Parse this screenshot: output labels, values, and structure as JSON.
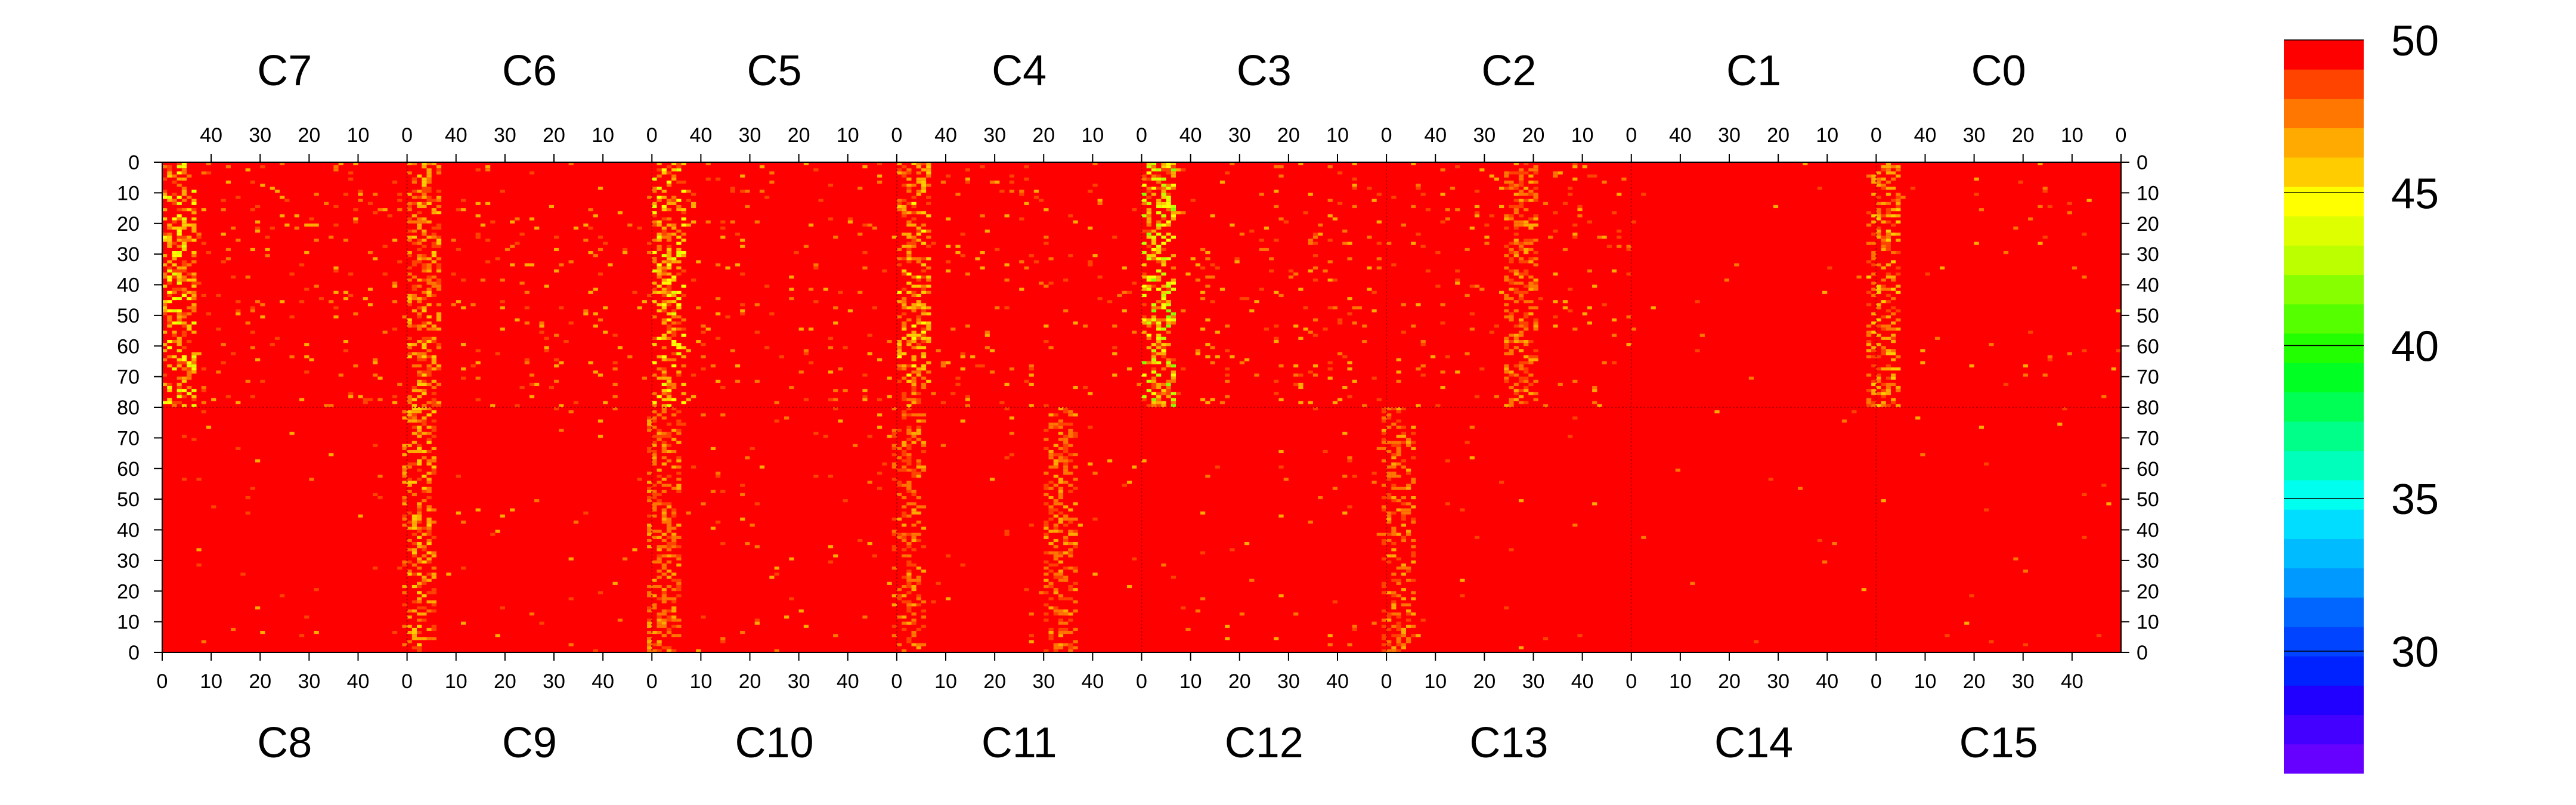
{
  "chart_data": {
    "type": "heatmap",
    "title": "",
    "top_panels": [
      "C7",
      "C6",
      "C5",
      "C4",
      "C3",
      "C2",
      "C1",
      "C0"
    ],
    "bottom_panels": [
      "C8",
      "C9",
      "C10",
      "C11",
      "C12",
      "C13",
      "C14",
      "C15"
    ],
    "top_x_ticks": [
      40,
      30,
      20,
      10,
      0
    ],
    "bottom_x_ticks": [
      0,
      10,
      20,
      30,
      40
    ],
    "top_y_ticks": [
      0,
      10,
      20,
      30,
      40,
      50,
      60,
      70,
      80
    ],
    "bottom_y_ticks": [
      70,
      60,
      50,
      40,
      30,
      20,
      10,
      0
    ],
    "columns_per_panel": 50,
    "rows_per_half": 80,
    "zlim": [
      26,
      50
    ],
    "colorbar_ticks": [
      30,
      35,
      40,
      45,
      50
    ],
    "colorbar_colors": [
      "#6600ff",
      "#4400ff",
      "#2200ff",
      "#0022ff",
      "#0044ff",
      "#0066ff",
      "#0099ff",
      "#00bbff",
      "#00ddff",
      "#00ffee",
      "#00ffbb",
      "#00ff88",
      "#00ff55",
      "#00ff22",
      "#22ff00",
      "#55ff00",
      "#88ff00",
      "#bbff00",
      "#ddff00",
      "#ffff00",
      "#ffcc00",
      "#ffaa00",
      "#ff7700",
      "#ff4400",
      "#ff0000"
    ],
    "background_value": 50,
    "hot_columns": [
      {
        "panel": "C7",
        "position": 3,
        "min_value": 44
      },
      {
        "panel": "C6",
        "position": 3,
        "min_value": 46
      },
      {
        "panel": "C5",
        "position": 3,
        "min_value": 44
      },
      {
        "panel": "C4",
        "position": 3,
        "min_value": 45
      },
      {
        "panel": "C3",
        "position": 3,
        "min_value": 42
      },
      {
        "panel": "C2",
        "position": 27,
        "min_value": 47
      },
      {
        "panel": "C0",
        "position": 1,
        "min_value": 46
      },
      {
        "panel": "C8",
        "position": 52,
        "min_value": 46
      },
      {
        "panel": "C9",
        "position": 52,
        "min_value": 47
      },
      {
        "panel": "C10",
        "position": 52,
        "min_value": 47
      },
      {
        "panel": "C11",
        "position": 33,
        "min_value": 47
      },
      {
        "panel": "C12",
        "position": 52,
        "min_value": 47
      }
    ]
  }
}
